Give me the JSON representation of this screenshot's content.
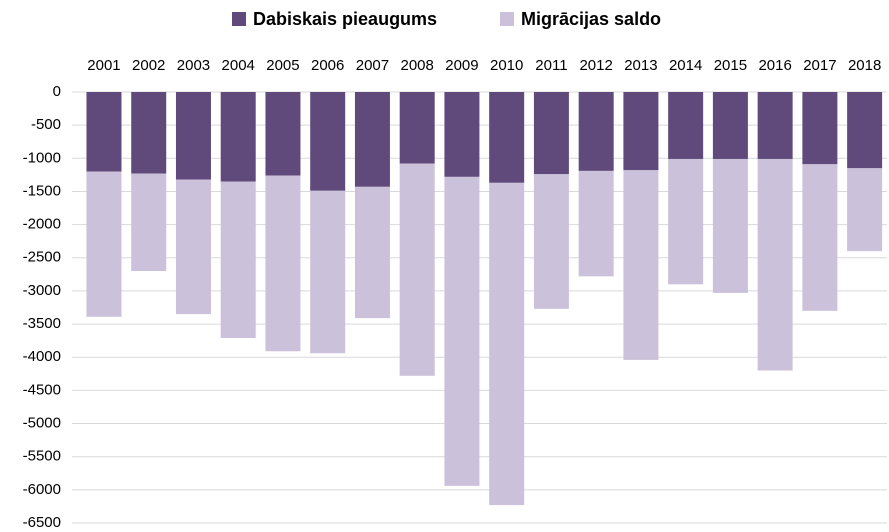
{
  "chart_data": {
    "type": "stacked_bar",
    "categories": [
      "2001",
      "2002",
      "2003",
      "2004",
      "2005",
      "2006",
      "2007",
      "2008",
      "2009",
      "2010",
      "2011",
      "2012",
      "2013",
      "2014",
      "2015",
      "2016",
      "2017",
      "2018"
    ],
    "series": [
      {
        "name": "Dabiskais pieaugums",
        "color": "#604a7b",
        "values": [
          -1200,
          -1230,
          -1320,
          -1350,
          -1260,
          -1490,
          -1430,
          -1080,
          -1280,
          -1370,
          -1240,
          -1190,
          -1180,
          -1010,
          -1010,
          -1010,
          -1090,
          -1150
        ]
      },
      {
        "name": "Migrācijas saldo",
        "color": "#ccc1da",
        "values": [
          -2190,
          -1470,
          -2030,
          -2360,
          -2650,
          -2450,
          -1980,
          -3200,
          -4660,
          -4860,
          -2030,
          -1590,
          -2860,
          -1890,
          -2020,
          -3190,
          -2210,
          -1250
        ]
      }
    ],
    "ylim": [
      -6500,
      0
    ],
    "yticks": [
      0,
      -500,
      -1000,
      -1500,
      -2000,
      -2500,
      -3000,
      -3500,
      -4000,
      -4500,
      -5000,
      -5500,
      -6000,
      -6500
    ],
    "grid": true,
    "legend": "top"
  }
}
